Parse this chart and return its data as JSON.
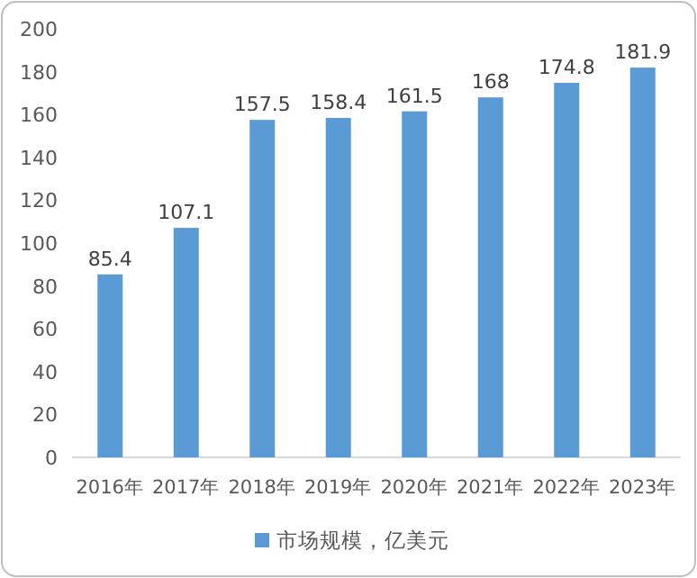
{
  "chart_data": {
    "type": "bar",
    "categories": [
      "2016年",
      "2017年",
      "2018年",
      "2019年",
      "2020年",
      "2021年",
      "2022年",
      "2023年"
    ],
    "series": [
      {
        "name": "市场规模，亿美元",
        "color": "#5b9bd5",
        "values": [
          85.4,
          107.1,
          157.5,
          158.4,
          161.5,
          168,
          174.8,
          181.9
        ]
      }
    ],
    "ylim": [
      0,
      200
    ],
    "yticks": [
      0,
      20,
      40,
      60,
      80,
      100,
      120,
      140,
      160,
      180,
      200
    ],
    "grid": false,
    "legend": "bottom",
    "data_labels": true
  }
}
